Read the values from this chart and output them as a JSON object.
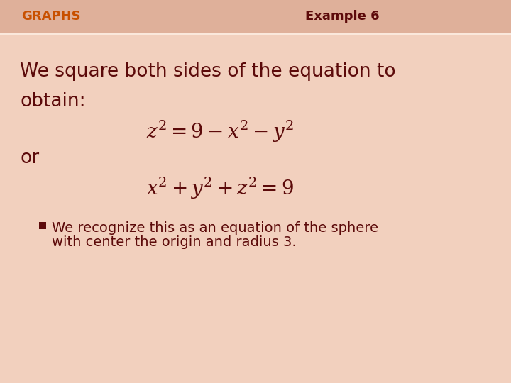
{
  "title_left": "GRAPHS",
  "title_right": "Example 6",
  "title_color_left": "#C85000",
  "title_color_right": "#5C0A0A",
  "header_bar_color": "#DFB09A",
  "bg_color_top": "#FAE8DC",
  "bg_color": "#F2D0BE",
  "text_color": "#5C0A0A",
  "bullet_color": "#5C0A0A",
  "line1": "We square both sides of the equation to",
  "line2": "obtain:",
  "eq1": "$z^2 = 9 - x^2 - y^2$",
  "word_or": "or",
  "eq2": "$x^2 + y^2 + z^2 = 9$",
  "bullet_line1": "We recognize this as an equation of the sphere",
  "bullet_line2": "with center the origin and radius 3.",
  "main_fontsize": 19,
  "eq_fontsize": 20,
  "bullet_fontsize": 14,
  "header_fontsize": 13
}
